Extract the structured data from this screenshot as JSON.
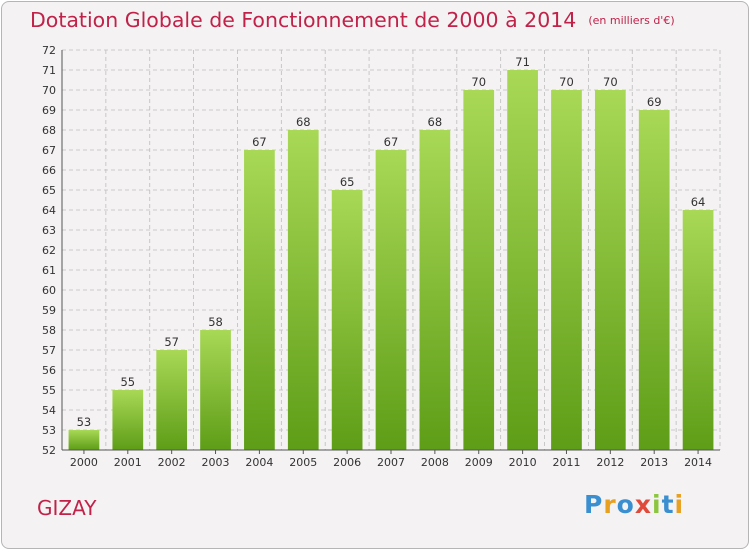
{
  "header": {
    "title": "Dotation Globale de Fonctionnement de 2000 à 2014",
    "unit": "(en milliers d'€)"
  },
  "footer": {
    "commune": "GIZAY",
    "logo": "Proxiti"
  },
  "colors": {
    "title": "#c0224a",
    "bar_light": "#a6d653",
    "bar_dark": "#5e9d17",
    "grid": "#bbbbbb",
    "axis_text": "#333333"
  },
  "chart_data": {
    "type": "bar",
    "title": "Dotation Globale de Fonctionnement de 2000 à 2014",
    "xlabel": "",
    "ylabel": "",
    "categories": [
      "2000",
      "2001",
      "2002",
      "2003",
      "2004",
      "2005",
      "2006",
      "2007",
      "2008",
      "2009",
      "2010",
      "2011",
      "2012",
      "2013",
      "2014"
    ],
    "values": [
      53,
      55,
      57,
      58,
      67,
      68,
      65,
      67,
      68,
      70,
      71,
      70,
      70,
      69,
      64
    ],
    "ylim": [
      52,
      72
    ],
    "yticks": [
      52,
      53,
      54,
      55,
      56,
      57,
      58,
      59,
      60,
      61,
      62,
      63,
      64,
      65,
      66,
      67,
      68,
      69,
      70,
      71,
      72
    ],
    "grid": true,
    "legend": "none",
    "data_labels": true
  }
}
